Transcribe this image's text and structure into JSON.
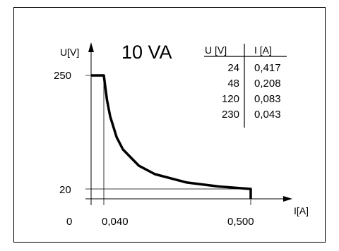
{
  "chart_data": {
    "type": "line",
    "title": "10 VA",
    "xlabel": "I[A]",
    "ylabel": "U[V]",
    "origin_label": "0",
    "x_ticks": [
      "0,040",
      "0,500"
    ],
    "y_ticks": [
      "250",
      "20"
    ],
    "series": [
      {
        "x": [
          0.0,
          0.04,
          0.05,
          0.06,
          0.08,
          0.1,
          0.15,
          0.2,
          0.3,
          0.4,
          0.5,
          0.5
        ],
        "y": [
          250,
          250,
          200,
          167,
          125,
          100,
          67,
          50,
          33,
          25,
          20,
          0
        ]
      }
    ],
    "table": {
      "headers": [
        "U [V]",
        "I [A]"
      ],
      "rows": [
        [
          "24",
          "0,417"
        ],
        [
          "48",
          "0,208"
        ],
        [
          "120",
          "0,083"
        ],
        [
          "230",
          "0,043"
        ]
      ]
    },
    "colors": {
      "line": "#000000",
      "axes": "#000000"
    }
  }
}
